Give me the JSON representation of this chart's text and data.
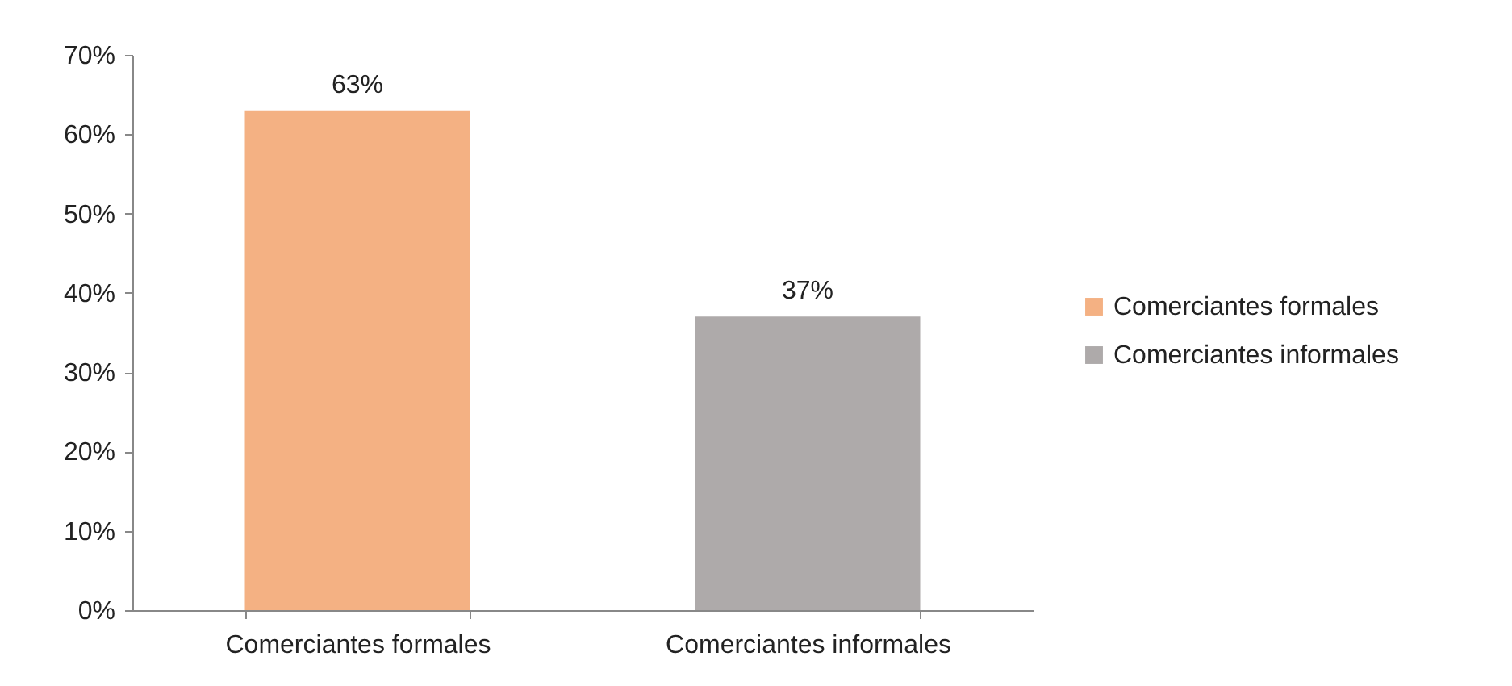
{
  "chart_data": {
    "type": "bar",
    "categories": [
      "Comerciantes formales",
      "Comerciantes informales"
    ],
    "series": [
      {
        "name": "Comerciantes formales",
        "color": "#f4b183",
        "values": [
          63,
          null
        ],
        "value_labels": [
          "63%",
          null
        ]
      },
      {
        "name": "Comerciantes informales",
        "color": "#aeaaaa",
        "values": [
          null,
          37
        ],
        "value_labels": [
          null,
          "37%"
        ]
      }
    ],
    "ylim": [
      0,
      70
    ],
    "yticks": [
      {
        "value": 0,
        "label": "0%"
      },
      {
        "value": 10,
        "label": "10%"
      },
      {
        "value": 20,
        "label": "20%"
      },
      {
        "value": 30,
        "label": "30%"
      },
      {
        "value": 40,
        "label": "40%"
      },
      {
        "value": 50,
        "label": "50%"
      },
      {
        "value": 60,
        "label": "60%"
      },
      {
        "value": 70,
        "label": "70%"
      }
    ],
    "grid": false,
    "legend": "right"
  }
}
